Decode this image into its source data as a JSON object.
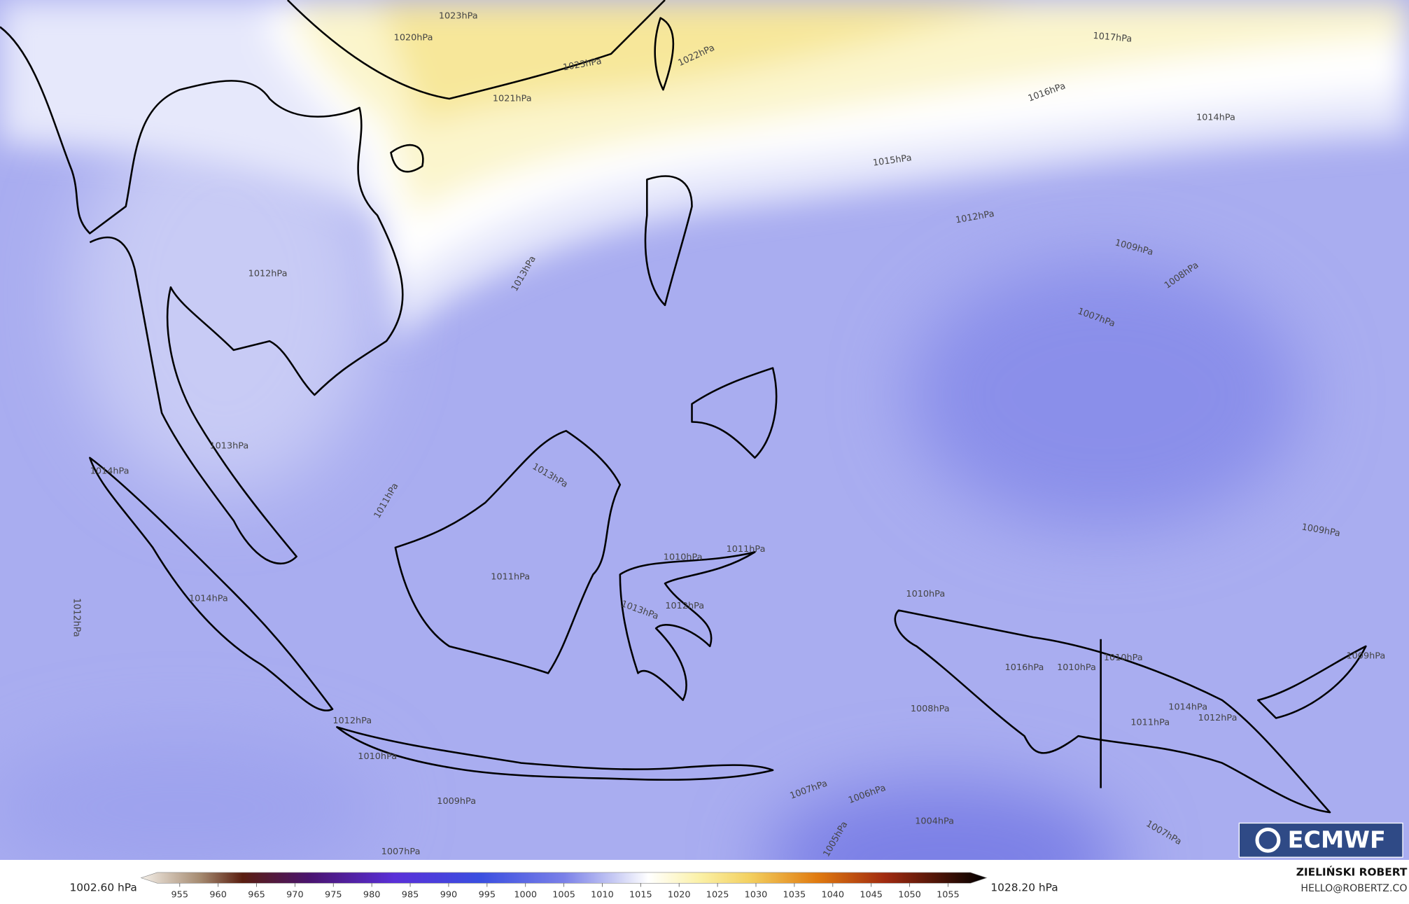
{
  "map": {
    "isobar_labels": [
      "1023hPa",
      "1020hPa",
      "1017hPa",
      "1022hPa",
      "1023hPa",
      "1021hPa",
      "1016hPa",
      "1014hPa",
      "1015hPa",
      "1012hPa",
      "1009hPa",
      "1008hPa",
      "1007hPa",
      "1013hPa",
      "1012hPa",
      "1013hPa",
      "1014hPa",
      "1011hPa",
      "1013hPa",
      "1011hPa",
      "1010hPa",
      "1011hPa",
      "1012hPa",
      "1013hPa",
      "1010hPa",
      "1009hPa",
      "1012hPa",
      "1014hPa",
      "1012hPa",
      "1010hPa",
      "1009hPa",
      "1007hPa",
      "1008hPa",
      "1010hPa",
      "1011hPa",
      "1012hPa",
      "1014hPa",
      "1010hPa",
      "1016hPa",
      "1007hPa",
      "1006hPa",
      "1004hPa",
      "1005hPa",
      "1007hPa",
      "1009hPa"
    ],
    "logo": "ECMWF"
  },
  "colorbar": {
    "ticks": [
      955,
      960,
      965,
      970,
      975,
      980,
      985,
      990,
      995,
      1000,
      1005,
      1010,
      1015,
      1020,
      1025,
      1030,
      1035,
      1040,
      1045,
      1050,
      1055
    ],
    "min_label": "1002.60 hPa",
    "max_label": "1028.20 hPa"
  },
  "credits": {
    "author": "ZIELIŃSKI ROBERT",
    "contact": "HELLO@ROBERTZ.CO"
  }
}
